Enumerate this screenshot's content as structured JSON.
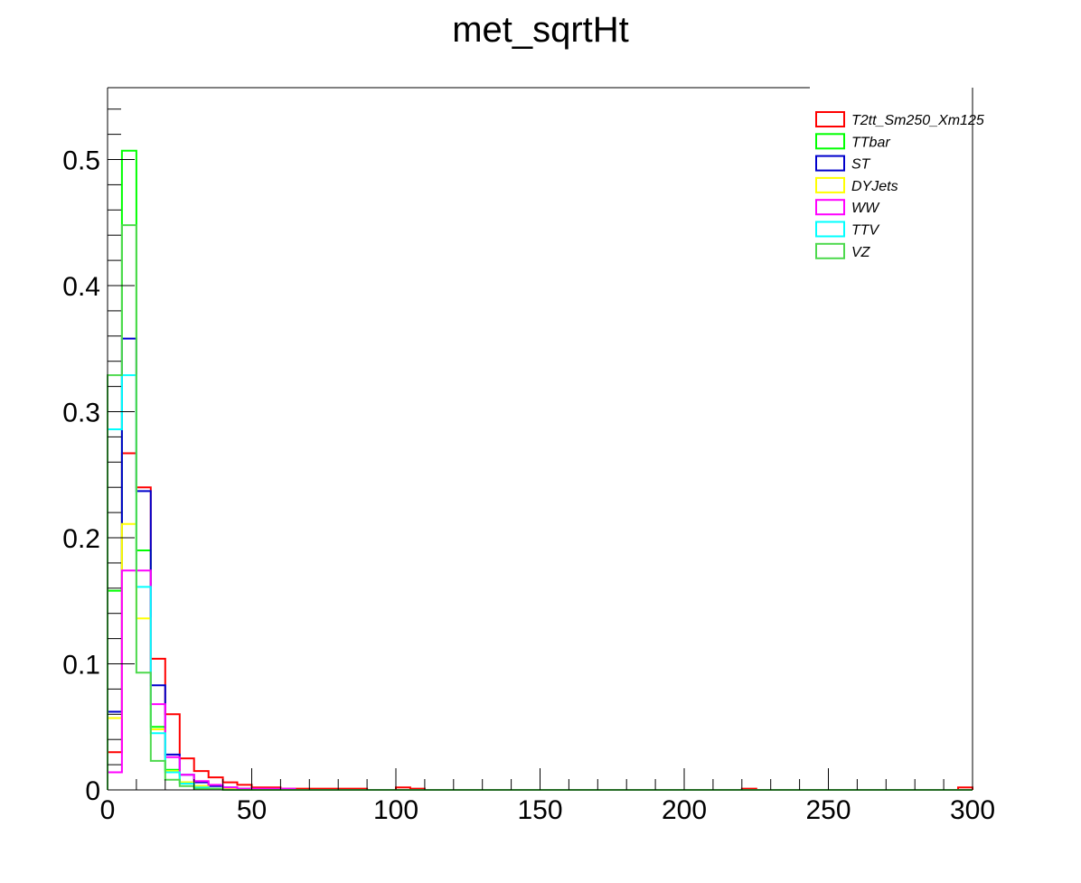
{
  "chart_data": {
    "type": "histogram",
    "title": "met_sqrtHt",
    "xlabel": "",
    "ylabel": "",
    "xlim": [
      0,
      300
    ],
    "ylim": [
      0,
      0.557
    ],
    "x_ticks": [
      "0",
      "50",
      "100",
      "150",
      "200",
      "250",
      "300"
    ],
    "y_ticks": [
      "0",
      "0.1",
      "0.2",
      "0.3",
      "0.4",
      "0.5"
    ],
    "y_tick_values": [
      0,
      0.1,
      0.2,
      0.3,
      0.4,
      0.5
    ],
    "bin_width": 5,
    "grid": false,
    "legend_position": "top-right",
    "series": [
      {
        "name": "T2tt_Sm250_Xm125",
        "color": "#ff0000",
        "values": [
          0.03,
          0.267,
          0.24,
          0.104,
          0.06,
          0.025,
          0.015,
          0.01,
          0.006,
          0.004,
          0.002,
          0.002,
          0.001,
          0.001,
          0.001,
          0.001,
          0.001,
          0.001,
          0.0,
          0.0,
          0.002,
          0.001,
          0.0,
          0.0,
          0.0,
          0.0,
          0.0,
          0.0,
          0.0,
          0.0,
          0.0,
          0.0,
          0.0,
          0.0,
          0.0,
          0.0,
          0.0,
          0.0,
          0.0,
          0.0,
          0.0,
          0.0,
          0.0,
          0.0,
          0.001,
          0.0,
          0.0,
          0.0,
          0.0,
          0.0,
          0.0,
          0.0,
          0.0,
          0.0,
          0.0,
          0.0,
          0.0,
          0.0,
          0.0,
          0.002
        ]
      },
      {
        "name": "TTbar",
        "color": "#00ff00",
        "values": [
          0.158,
          0.507,
          0.19,
          0.05,
          0.016,
          0.006,
          0.003,
          0.001,
          0.001,
          0.001,
          0.0,
          0.0,
          0.0,
          0.0,
          0.0,
          0.0,
          0.0,
          0.0,
          0.0,
          0.0,
          0.0,
          0.0,
          0.0,
          0.0,
          0.0,
          0.0,
          0.0,
          0.0,
          0.0,
          0.0,
          0.0,
          0.0,
          0.0,
          0.0,
          0.0,
          0.0,
          0.0,
          0.0,
          0.0,
          0.0,
          0.0,
          0.0,
          0.0,
          0.0,
          0.0,
          0.0,
          0.0,
          0.0,
          0.0,
          0.0,
          0.0,
          0.0,
          0.0,
          0.0,
          0.0,
          0.0,
          0.0,
          0.0,
          0.0,
          0.0
        ]
      },
      {
        "name": "ST",
        "color": "#0000cc",
        "values": [
          0.062,
          0.358,
          0.237,
          0.083,
          0.028,
          0.012,
          0.006,
          0.003,
          0.002,
          0.001,
          0.0,
          0.0,
          0.0,
          0.0,
          0.0,
          0.0,
          0.0,
          0.0,
          0.0,
          0.0,
          0.0,
          0.0,
          0.0,
          0.0,
          0.0,
          0.0,
          0.0,
          0.0,
          0.0,
          0.0,
          0.0,
          0.0,
          0.0,
          0.0,
          0.0,
          0.0,
          0.0,
          0.0,
          0.0,
          0.0,
          0.0,
          0.0,
          0.0,
          0.0,
          0.0,
          0.0,
          0.0,
          0.0,
          0.0,
          0.0,
          0.0,
          0.0,
          0.0,
          0.0,
          0.0,
          0.0,
          0.0,
          0.0,
          0.0,
          0.0
        ]
      },
      {
        "name": "DYJets",
        "color": "#ffff00",
        "values": [
          0.057,
          0.211,
          0.136,
          0.048,
          0.015,
          0.006,
          0.003,
          0.001,
          0.001,
          0.0,
          0.0,
          0.0,
          0.0,
          0.0,
          0.0,
          0.0,
          0.0,
          0.0,
          0.0,
          0.0,
          0.0,
          0.0,
          0.0,
          0.0,
          0.0,
          0.0,
          0.0,
          0.0,
          0.0,
          0.0,
          0.0,
          0.0,
          0.0,
          0.0,
          0.0,
          0.0,
          0.0,
          0.0,
          0.0,
          0.0,
          0.0,
          0.0,
          0.0,
          0.0,
          0.0,
          0.0,
          0.0,
          0.0,
          0.0,
          0.0,
          0.0,
          0.0,
          0.0,
          0.0,
          0.0,
          0.0,
          0.0,
          0.0,
          0.0,
          0.0
        ]
      },
      {
        "name": "WW",
        "color": "#ff00ff",
        "values": [
          0.014,
          0.174,
          0.174,
          0.068,
          0.026,
          0.012,
          0.007,
          0.004,
          0.002,
          0.001,
          0.001,
          0.001,
          0.001,
          0.0,
          0.0,
          0.0,
          0.0,
          0.0,
          0.0,
          0.0,
          0.0,
          0.0,
          0.0,
          0.0,
          0.0,
          0.0,
          0.0,
          0.0,
          0.0,
          0.0,
          0.0,
          0.0,
          0.0,
          0.0,
          0.0,
          0.0,
          0.0,
          0.0,
          0.0,
          0.0,
          0.0,
          0.0,
          0.0,
          0.0,
          0.0,
          0.0,
          0.0,
          0.0,
          0.0,
          0.0,
          0.0,
          0.0,
          0.0,
          0.0,
          0.0,
          0.0,
          0.0,
          0.0,
          0.0,
          0.0
        ]
      },
      {
        "name": "TTV",
        "color": "#00ffff",
        "values": [
          0.286,
          0.329,
          0.161,
          0.045,
          0.014,
          0.005,
          0.002,
          0.001,
          0.0,
          0.0,
          0.0,
          0.0,
          0.0,
          0.0,
          0.0,
          0.0,
          0.0,
          0.0,
          0.0,
          0.0,
          0.0,
          0.0,
          0.0,
          0.0,
          0.0,
          0.0,
          0.0,
          0.0,
          0.0,
          0.0,
          0.0,
          0.0,
          0.0,
          0.0,
          0.0,
          0.0,
          0.0,
          0.0,
          0.0,
          0.0,
          0.0,
          0.0,
          0.0,
          0.0,
          0.0,
          0.0,
          0.0,
          0.0,
          0.0,
          0.0,
          0.0,
          0.0,
          0.0,
          0.0,
          0.0,
          0.0,
          0.0,
          0.0,
          0.0,
          0.0
        ]
      },
      {
        "name": "VZ",
        "color": "#4dd94d",
        "values": [
          0.329,
          0.448,
          0.093,
          0.023,
          0.008,
          0.003,
          0.001,
          0.001,
          0.0,
          0.0,
          0.0,
          0.0,
          0.0,
          0.0,
          0.0,
          0.0,
          0.0,
          0.0,
          0.0,
          0.0,
          0.0,
          0.0,
          0.0,
          0.0,
          0.0,
          0.0,
          0.0,
          0.0,
          0.0,
          0.0,
          0.0,
          0.0,
          0.0,
          0.0,
          0.0,
          0.0,
          0.0,
          0.0,
          0.0,
          0.0,
          0.0,
          0.0,
          0.0,
          0.0,
          0.0,
          0.0,
          0.0,
          0.0,
          0.0,
          0.0,
          0.0,
          0.0,
          0.0,
          0.0,
          0.0,
          0.0,
          0.0,
          0.0,
          0.0,
          0.0
        ]
      }
    ]
  }
}
